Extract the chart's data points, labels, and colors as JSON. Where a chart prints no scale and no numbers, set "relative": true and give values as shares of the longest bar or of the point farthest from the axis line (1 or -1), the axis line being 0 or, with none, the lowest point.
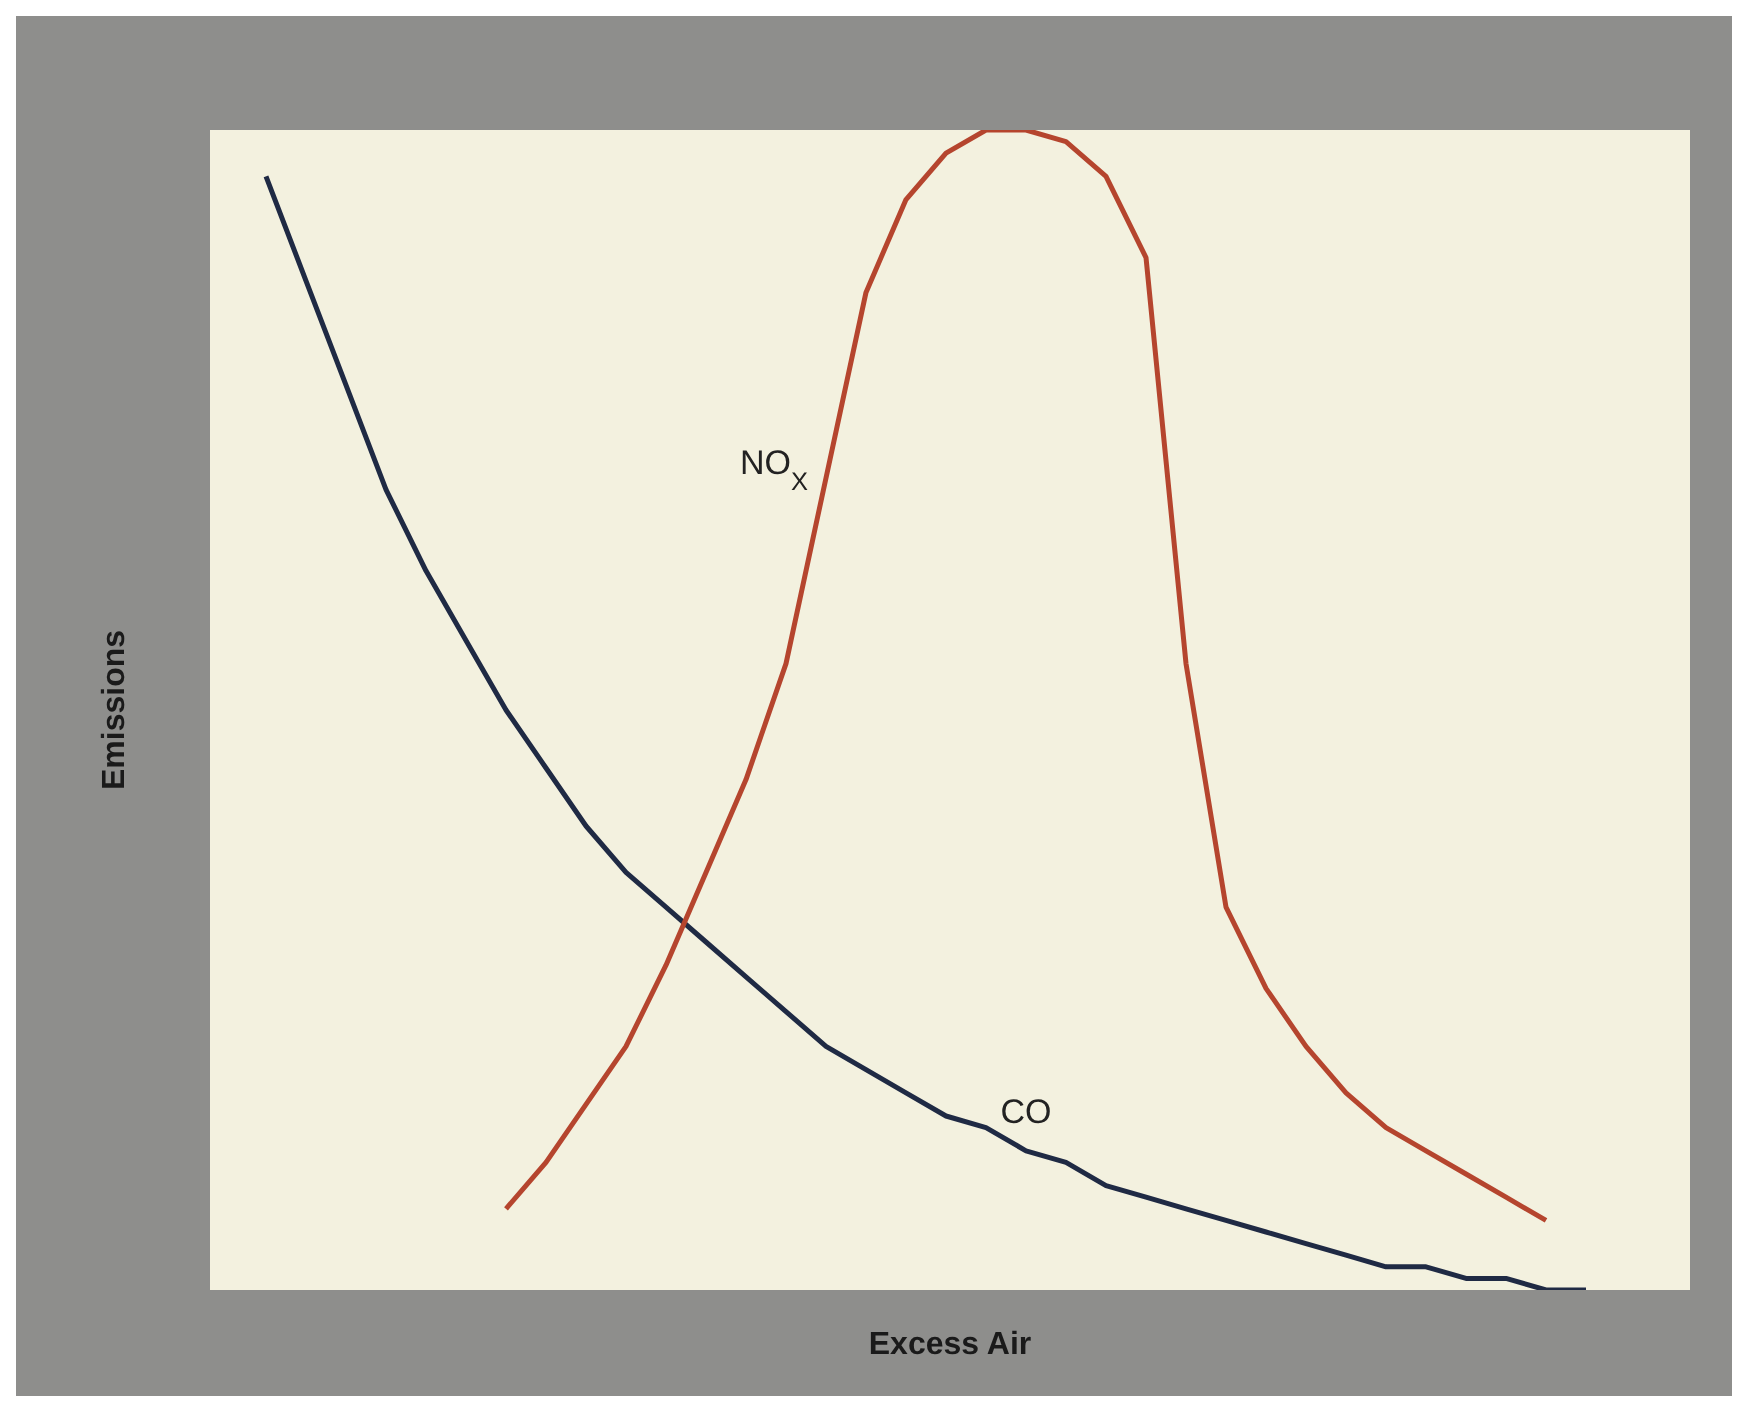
{
  "chart_data": {
    "type": "line",
    "relative": true,
    "xlabel": "Excess Air",
    "ylabel": "Emissions",
    "marker": "none",
    "line_style": "solid",
    "categories": [
      null,
      null,
      null,
      null,
      null,
      null,
      null,
      null,
      null,
      null,
      null,
      null,
      null,
      null,
      null,
      null,
      null,
      null,
      null,
      null,
      null,
      null,
      null,
      null,
      null,
      null,
      null,
      null,
      null,
      null,
      null,
      null,
      null,
      null
    ],
    "series": [
      {
        "name": "CO",
        "color": "#1f2a44",
        "values": [
          0.96,
          0.87,
          0.78,
          0.69,
          0.62,
          0.56,
          0.5,
          0.45,
          0.4,
          0.36,
          0.33,
          0.3,
          0.27,
          0.24,
          0.21,
          0.19,
          0.17,
          0.15,
          0.14,
          0.12,
          0.11,
          0.09,
          0.08,
          0.07,
          0.06,
          0.05,
          0.04,
          0.03,
          0.02,
          0.02,
          0.01,
          0.01,
          0,
          0
        ]
      },
      {
        "name": "NO$_{X}$",
        "color": "#b5452e",
        "values": [
          null,
          null,
          null,
          null,
          null,
          null,
          0.07,
          0.11,
          0.16,
          0.21,
          0.28,
          0.36,
          0.44,
          0.54,
          0.7,
          0.86,
          0.94,
          0.98,
          1,
          1,
          0.99,
          0.96,
          0.89,
          0.54,
          0.33,
          0.26,
          0.21,
          0.17,
          0.14,
          0.12,
          0.1,
          0.08,
          0.06,
          null
        ]
      }
    ]
  }
}
